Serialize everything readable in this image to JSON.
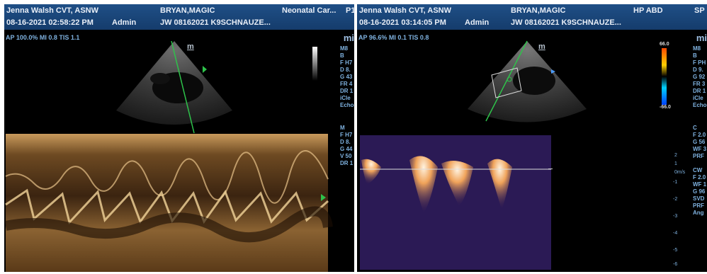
{
  "left": {
    "sonographer": "Jenna Walsh CVT, ASNW",
    "datetime": "08-16-2021 02:58:22 PM",
    "user": "Admin",
    "patient_name": "BRYAN,MAGIC",
    "patient_id": "JW 08162021 K9SCHNAUZE...",
    "exam": "Neonatal Car...",
    "probe": "P1",
    "acq": "AP 100.0%  MI 0.8  TIS 1.1",
    "logo": "mi",
    "sector_marker": "m",
    "params_2d": [
      "M8",
      "B",
      "F H7",
      "D 8.",
      "G 43",
      "FR 4",
      "DR 1",
      "iCle",
      "Echo"
    ],
    "params_m": [
      "M",
      "F H7",
      "D 8.",
      "G 44",
      "V 50",
      "DR 1"
    ]
  },
  "right": {
    "sonographer": "Jenna Walsh CVT, ASNW",
    "datetime": "08-16-2021 03:14:05 PM",
    "user": "Admin",
    "patient_name": "BRYAN,MAGIC",
    "patient_id": "JW 08162021 K9SCHNAUZE...",
    "exam": "HP ABD",
    "probe": "SP",
    "acq": "AP 96.6%  MI 0.1  TIS 0.8",
    "logo": "mi",
    "sector_marker": "m",
    "colorbar_top": "66.0",
    "colorbar_bottom": "-66.0",
    "params_2d": [
      "M8",
      "B",
      "F PH",
      "D 9.",
      "G 92",
      "FR 3",
      "DR 1",
      "iCle",
      "Echo"
    ],
    "params_c": [
      "C",
      "F 2.0",
      "G 56",
      "WF 3",
      "PRF"
    ],
    "params_cw": [
      "CW",
      "F 2.0",
      "WF 1",
      "G 96",
      "SVD",
      "PRF",
      "Ang"
    ],
    "velocity_unit": "m/s",
    "velocity_scale": [
      "2",
      "1",
      "0",
      "-1",
      "-2",
      "-3",
      "-4",
      "-5",
      "-6"
    ]
  }
}
